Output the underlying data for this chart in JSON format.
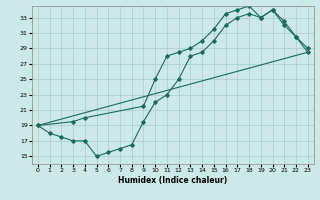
{
  "xlabel": "Humidex (Indice chaleur)",
  "ylabel": "",
  "background_color": "#cce8e8",
  "grid_color": "#aacccc",
  "line_color": "#1a6b5a",
  "xlim": [
    -0.5,
    23.5
  ],
  "ylim": [
    14.0,
    34.5
  ],
  "yticks": [
    15,
    17,
    19,
    21,
    23,
    25,
    27,
    29,
    31,
    33
  ],
  "xticks": [
    0,
    1,
    2,
    3,
    4,
    5,
    6,
    7,
    8,
    9,
    10,
    11,
    12,
    13,
    14,
    15,
    16,
    17,
    18,
    19,
    20,
    21,
    22,
    23
  ],
  "series1_x": [
    0,
    1,
    2,
    3,
    4,
    5,
    6,
    7,
    8,
    9,
    10,
    11,
    12,
    13,
    14,
    15,
    16,
    17,
    18,
    19,
    20,
    21,
    22,
    23
  ],
  "series1_y": [
    19,
    18,
    17.5,
    17,
    17,
    15,
    15.5,
    16,
    16.5,
    19.5,
    22,
    23,
    25,
    28,
    28.5,
    30,
    32,
    33,
    33.5,
    33,
    34,
    32,
    30.5,
    28.5
  ],
  "series2_x": [
    0,
    3,
    4,
    9,
    10,
    11,
    12,
    13,
    14,
    15,
    16,
    17,
    18,
    19,
    20,
    21,
    22,
    23
  ],
  "series2_y": [
    19,
    19.5,
    20,
    21.5,
    25,
    28,
    28.5,
    29,
    30,
    31.5,
    33.5,
    34,
    34.5,
    33,
    34,
    32.5,
    30.5,
    29
  ],
  "series3_x": [
    0,
    23
  ],
  "series3_y": [
    19,
    28.5
  ]
}
